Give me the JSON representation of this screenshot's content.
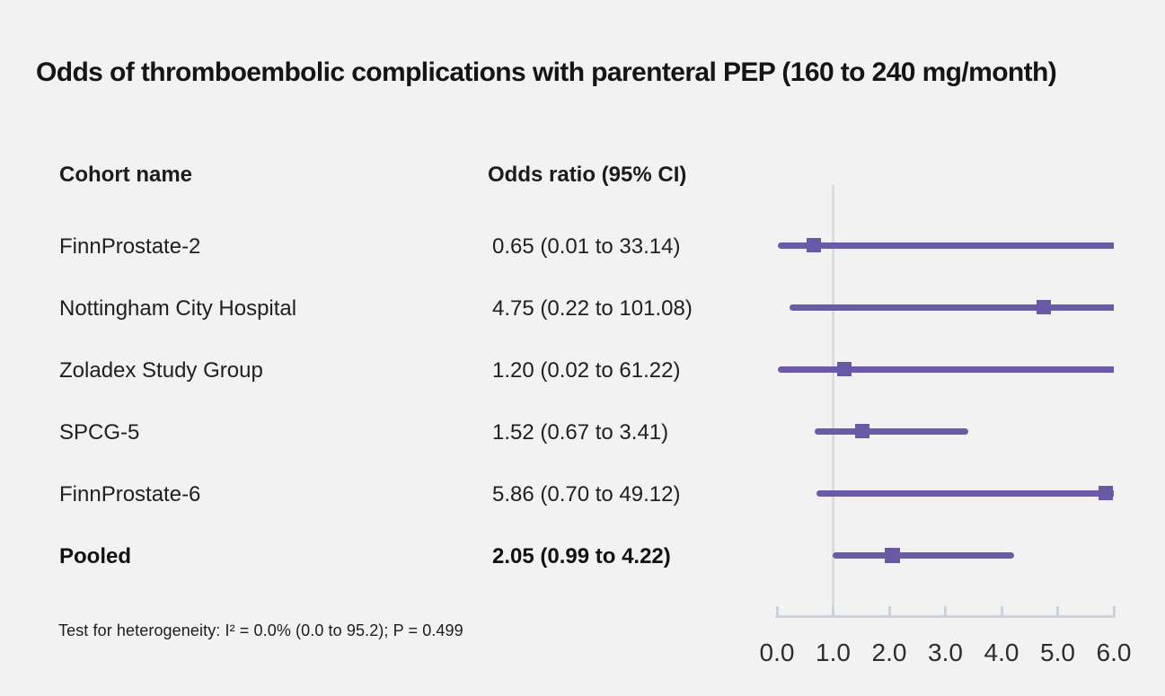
{
  "title": "Odds of thromboembolic complications with parenteral PEP (160 to 240 mg/month)",
  "table": {
    "col_cohort": "Cohort name",
    "col_or": "Odds ratio (95% CI)",
    "rows": [
      {
        "cohort": "FinnProstate-2",
        "or": "0.65 (0.01 to 33.14)"
      },
      {
        "cohort": "Nottingham City Hospital",
        "or": "4.75 (0.22 to 101.08)"
      },
      {
        "cohort": "Zoladex Study Group",
        "or": "1.20 (0.02 to 61.22)"
      },
      {
        "cohort": "SPCG-5",
        "or": "1.52 (0.67 to 3.41)"
      },
      {
        "cohort": "FinnProstate-6",
        "or": "5.86 (0.70 to 49.12)"
      },
      {
        "cohort": "Pooled",
        "or": "2.05 (0.99 to 4.22)"
      }
    ]
  },
  "footnote": "Test for heterogeneity: I² = 0.0% (0.0 to 95.2); P = 0.499",
  "chart_data": {
    "type": "scatter",
    "variant": "forest-plot",
    "title": "Odds of thromboembolic complications with parenteral PEP (160 to 240 mg/month)",
    "xlabel": "Odds ratio (95% CI)",
    "xlim": [
      0,
      6
    ],
    "x_ticks": [
      0,
      1,
      2,
      3,
      4,
      5,
      6
    ],
    "x_tick_labels": [
      "0.0",
      "1.0",
      "2.0",
      "3.0",
      "4.0",
      "5.0",
      "6.0"
    ],
    "reference_line_x": 1.0,
    "grid": false,
    "legend": false,
    "series": [
      {
        "name": "FinnProstate-2",
        "estimate": 0.65,
        "ci_lower": 0.01,
        "ci_upper": 33.14,
        "pooled": false
      },
      {
        "name": "Nottingham City Hospital",
        "estimate": 4.75,
        "ci_lower": 0.22,
        "ci_upper": 101.08,
        "pooled": false
      },
      {
        "name": "Zoladex Study Group",
        "estimate": 1.2,
        "ci_lower": 0.02,
        "ci_upper": 61.22,
        "pooled": false
      },
      {
        "name": "SPCG-5",
        "estimate": 1.52,
        "ci_lower": 0.67,
        "ci_upper": 3.41,
        "pooled": false
      },
      {
        "name": "FinnProstate-6",
        "estimate": 5.86,
        "ci_lower": 0.7,
        "ci_upper": 49.12,
        "pooled": false
      },
      {
        "name": "Pooled",
        "estimate": 2.05,
        "ci_lower": 0.99,
        "ci_upper": 4.22,
        "pooled": true
      }
    ],
    "heterogeneity_note": "Test for heterogeneity: I² = 0.0% (0.0 to 95.2); P = 0.499"
  },
  "colors": {
    "background": "#f2f2f2",
    "text": "#1c1c1c",
    "ci_line": "#6b5aa7",
    "marker": "#6859a6",
    "reference_line": "#d8dce3",
    "axis": "#ccd2db",
    "tick": "#ccd2db"
  }
}
